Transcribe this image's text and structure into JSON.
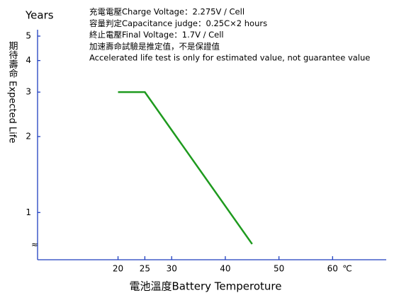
{
  "chart_data": {
    "type": "line",
    "y_unit": "Years",
    "ylabel": "期待壽命 Expected Life",
    "xlabel": "電池溫度Battery Temperoture",
    "x_unit": "℃",
    "axis_break": "≈",
    "notes": [
      "充電電壓Charge Voltage：2.275V / Cell",
      "容量判定Capacitance judge：0.25C×2 hours",
      "終止電壓Final Voltage：1.7V / Cell",
      "加速壽命試驗是推定值，不是保證值",
      "Accelerated life test is only for estimated value, not guarantee value"
    ],
    "x": [
      20,
      25,
      45
    ],
    "series": [
      {
        "color": "#1e9a1e",
        "values": [
          3,
          3,
          0.75
        ]
      }
    ],
    "xlim": [
      5,
      70
    ],
    "xticks": [
      20,
      25,
      30,
      40,
      50,
      60
    ],
    "ylim": [
      0.65,
      5.3
    ],
    "yticks": [
      1,
      2,
      3,
      4,
      5
    ],
    "ylog": true,
    "axis_color": "#1f3fbf"
  }
}
